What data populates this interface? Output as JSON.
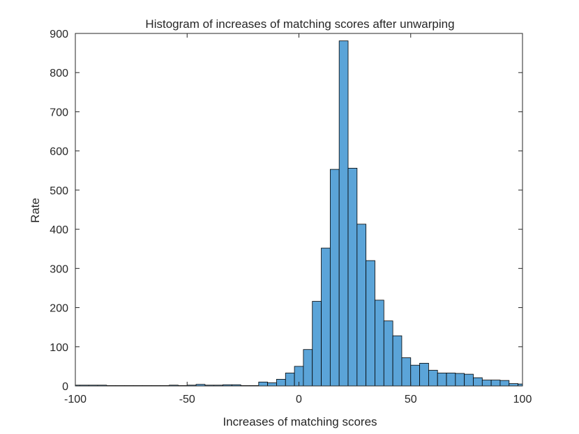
{
  "chart_data": {
    "type": "bar",
    "title": "Histogram of increases of matching scores after unwarping",
    "xlabel": "Increases of matching scores",
    "ylabel": "Rate",
    "xlim": [
      -100,
      100
    ],
    "ylim": [
      0,
      900
    ],
    "xticks": [
      -100,
      -50,
      0,
      50,
      100
    ],
    "yticks": [
      0,
      100,
      200,
      300,
      400,
      500,
      600,
      700,
      800,
      900
    ],
    "bin_width": 4,
    "bin_start": -102,
    "values": [
      2,
      2,
      2,
      2,
      1,
      1,
      1,
      1,
      1,
      1,
      1,
      2,
      1,
      2,
      4,
      2,
      2,
      3,
      3,
      1,
      1,
      10,
      8,
      17,
      33,
      50,
      93,
      216,
      352,
      553,
      881,
      556,
      413,
      320,
      219,
      166,
      128,
      72,
      53,
      58,
      40,
      33,
      33,
      32,
      30,
      21,
      15,
      15,
      14,
      6,
      5,
      9,
      9,
      3,
      6
    ],
    "grid": false,
    "bar_color": "#5BA4D8",
    "edge_color": "#000000"
  }
}
